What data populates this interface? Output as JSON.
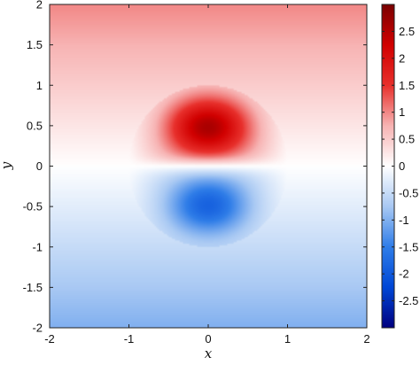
{
  "chart_data": {
    "type": "heatmap",
    "title": "",
    "xlabel": "x",
    "ylabel": "y",
    "xlim": [
      -2,
      2
    ],
    "ylim": [
      -2,
      2
    ],
    "x_ticks": [
      -2,
      -1,
      0,
      1,
      2
    ],
    "y_ticks": [
      -2,
      -1.5,
      -1,
      -0.5,
      0,
      0.5,
      1,
      1.5,
      2
    ],
    "x_tick_labels": [
      "-2",
      "-1",
      "0",
      "1",
      "2"
    ],
    "y_tick_labels": [
      "-2",
      "-1.5",
      "-1",
      "-0.5",
      "0",
      "0.5",
      "1",
      "1.5",
      "2"
    ],
    "colorbar": {
      "range": [
        -3,
        3
      ],
      "ticks": [
        -2.5,
        -2,
        -1.5,
        -1,
        -0.5,
        0,
        0.5,
        1,
        1.5,
        2,
        2.5
      ],
      "tick_labels": [
        "-2.5",
        "-2",
        "-1.5",
        "-1",
        "-0.5",
        "0",
        "0.5",
        "1",
        "1.5",
        "2",
        "2.5"
      ],
      "colormap": [
        "#000080",
        "#0047d6",
        "#2f7de8",
        "#a9c9f3",
        "#ffffff",
        "#f7b3b3",
        "#e8302c",
        "#d10000",
        "#7a0000"
      ]
    },
    "field": {
      "description_values": {
        "background_top": 0.5,
        "background_bottom": -0.5,
        "peak_max": 2.8,
        "peak_min": -2.0,
        "peak_location_y": [
          0.5,
          -0.5
        ],
        "disk_radius": 1.0
      }
    }
  }
}
